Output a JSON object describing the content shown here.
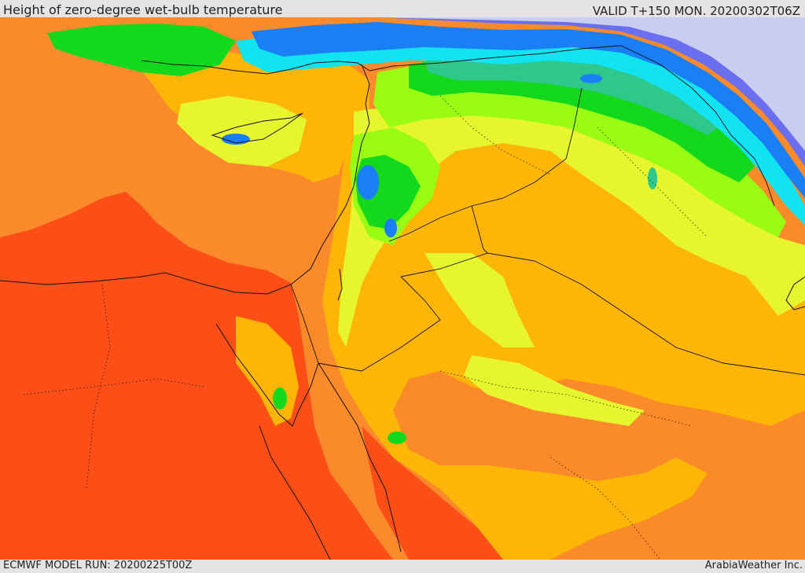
{
  "header": {
    "title": "Height of zero-degree wet-bulb temperature",
    "valid": "VALID T+150 MON. 20200302T06Z"
  },
  "footer": {
    "model_run": "ECMWF MODEL RUN: 20200225T00Z",
    "credit": "ArabiaWeather Inc."
  },
  "colors": {
    "very_high": "#fb4f17",
    "high": "#fb8a2a",
    "mid_high": "#fdb507",
    "mid": "#e6f52d",
    "low_mid": "#9afc13",
    "low": "#14d81c",
    "lower": "#2ec88c",
    "cyan": "#11e3f1",
    "blue": "#1a7ef5",
    "violet": "#6a6ff0",
    "lowest": "#c9cdf0",
    "border": "#111111"
  }
}
